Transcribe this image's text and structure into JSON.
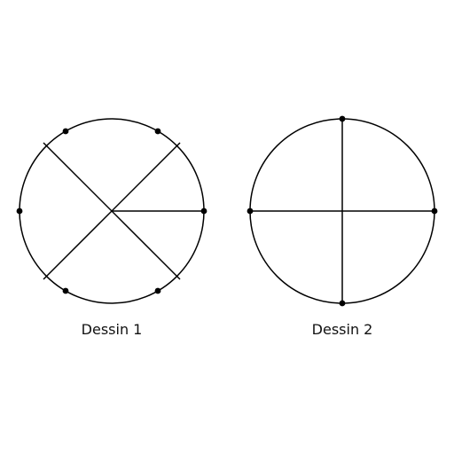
{
  "figure": {
    "drawings": [
      {
        "label": "Dessin 1"
      },
      {
        "label": "Dessin 2"
      }
    ]
  },
  "colors": {
    "stroke": "#000000",
    "text": "#111111",
    "background": "#ffffff"
  }
}
